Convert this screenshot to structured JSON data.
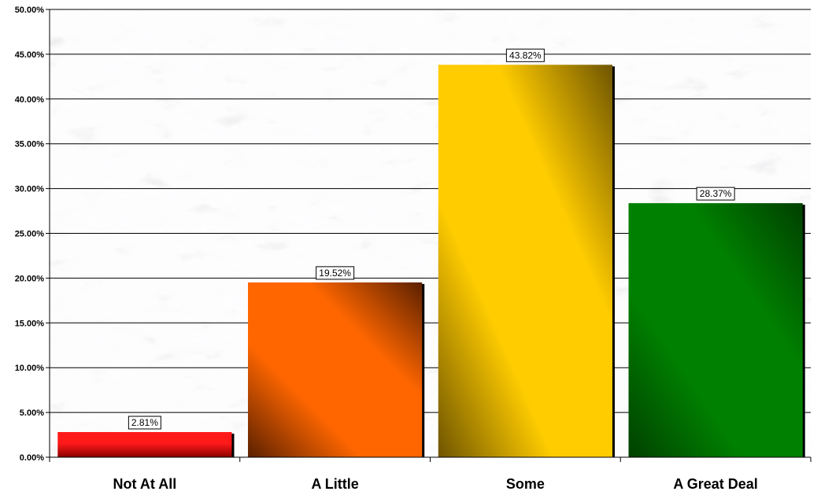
{
  "chart_data": {
    "type": "bar",
    "title": "",
    "xlabel": "",
    "ylabel": "",
    "categories": [
      "Not At All",
      "A Little",
      "Some",
      "A Great Deal"
    ],
    "values": [
      2.81,
      19.52,
      43.82,
      28.37
    ],
    "data_labels": [
      "2.81%",
      "19.52%",
      "43.82%",
      "28.37%"
    ],
    "ylim": [
      0,
      50
    ],
    "y_ticks": [
      0,
      5,
      10,
      15,
      20,
      25,
      30,
      35,
      40,
      45,
      50
    ],
    "y_tick_labels": [
      "0.00%",
      "5.00%",
      "10.00%",
      "15.00%",
      "20.00%",
      "25.00%",
      "30.00%",
      "35.00%",
      "40.00%",
      "45.00%",
      "50.00%"
    ],
    "grid": true,
    "legend": "none",
    "bar_colors": [
      "#ff1a1a",
      "#ff6600",
      "#ffcc00",
      "#008000"
    ],
    "bar_dark_colors": [
      "#8a0000",
      "#5a2000",
      "#6e5400",
      "#004000"
    ],
    "background": "marble-texture"
  }
}
